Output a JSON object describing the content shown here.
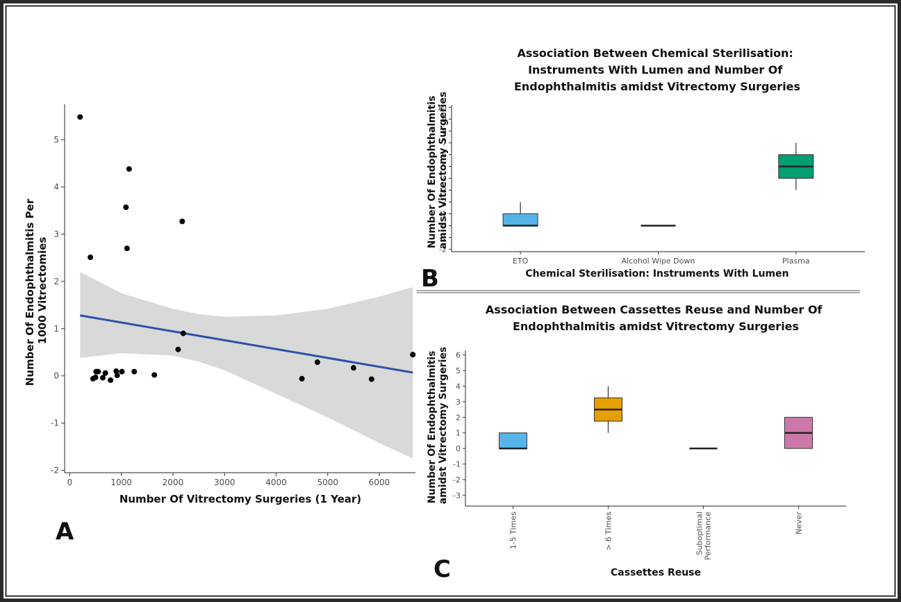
{
  "panels": {
    "A": "A",
    "B": "B",
    "C": "C"
  },
  "chart_data": [
    {
      "id": "A",
      "type": "scatter",
      "title": "",
      "xlabel": "Number Of Vitrectomy Surgeries (1 Year)",
      "ylabel": "Number Of Endophthalmitis Per 1000 Vitrectomies",
      "ylabel_lines": [
        "Number Of Endophthalmitis Per",
        "1000 Vitrectomies"
      ],
      "xlim": [
        -100,
        6700
      ],
      "ylim": [
        -2.05,
        5.75
      ],
      "xticks": [
        0,
        1000,
        2000,
        3000,
        4000,
        5000,
        6000
      ],
      "yticks": [
        -2,
        -1,
        0,
        1,
        2,
        3,
        4,
        5
      ],
      "points": [
        {
          "x": 200,
          "y": 5.48
        },
        {
          "x": 400,
          "y": 2.51
        },
        {
          "x": 450,
          "y": -0.06
        },
        {
          "x": 500,
          "y": -0.03
        },
        {
          "x": 510,
          "y": 0.09
        },
        {
          "x": 550,
          "y": 0.09
        },
        {
          "x": 640,
          "y": -0.04
        },
        {
          "x": 690,
          "y": 0.06
        },
        {
          "x": 790,
          "y": -0.09
        },
        {
          "x": 900,
          "y": 0.1
        },
        {
          "x": 920,
          "y": 0.01
        },
        {
          "x": 1010,
          "y": 0.09
        },
        {
          "x": 1090,
          "y": 3.57
        },
        {
          "x": 1110,
          "y": 2.7
        },
        {
          "x": 1150,
          "y": 4.38
        },
        {
          "x": 1250,
          "y": 0.09
        },
        {
          "x": 1640,
          "y": 0.02
        },
        {
          "x": 2100,
          "y": 0.56
        },
        {
          "x": 2180,
          "y": 3.27
        },
        {
          "x": 2200,
          "y": 0.9
        },
        {
          "x": 4500,
          "y": -0.06
        },
        {
          "x": 4800,
          "y": 0.29
        },
        {
          "x": 5500,
          "y": 0.17
        },
        {
          "x": 5850,
          "y": -0.07
        },
        {
          "x": 6650,
          "y": 0.45
        }
      ],
      "fit_line": {
        "x": [
          200,
          6650
        ],
        "y": [
          1.28,
          0.07
        ]
      },
      "confidence_band": {
        "x": [
          200,
          1000,
          2000,
          2500,
          3000,
          4000,
          5000,
          6000,
          6650
        ],
        "upper": [
          2.2,
          1.75,
          1.42,
          1.31,
          1.25,
          1.28,
          1.42,
          1.68,
          1.88
        ],
        "lower": [
          0.38,
          0.48,
          0.43,
          0.3,
          0.12,
          -0.38,
          -0.88,
          -1.42,
          -1.75
        ]
      },
      "colors": {
        "points": "#000000",
        "fit_line": "#2c4fa8",
        "band": "#d9d9d9"
      }
    },
    {
      "id": "B",
      "type": "box",
      "title": "Association Between Chemical Sterilisation: Instruments With Lumen and Number Of Endophthalmitis amidst Vitrectomy Surgeries",
      "title_lines": [
        "Association Between Chemical Sterilisation:",
        "Instruments With Lumen and Number Of",
        "Endophthalmitis amidst Vitrectomy Surgeries"
      ],
      "xlabel": "Chemical Sterilisation: Instruments With Lumen",
      "ylabel": "Number Of Endophthalmitis amidst Vitrectomy Surgeries",
      "ylabel_lines": [
        "Number Of Endophthalmitis",
        "amidst Vitrectomy Surgeries"
      ],
      "ylim": [
        -2.2,
        10.2
      ],
      "yticks": [
        -2,
        -1,
        0,
        1,
        2,
        3,
        4,
        5,
        6,
        7,
        8,
        9,
        10
      ],
      "categories": [
        "ETO",
        "Alcohol Wipe Down",
        "Plasma"
      ],
      "boxes": [
        {
          "category": "ETO",
          "min": 0,
          "q1": 0,
          "median": 0,
          "q3": 1,
          "max": 2,
          "color": "#56b4e9"
        },
        {
          "category": "Alcohol Wipe Down",
          "min": 0,
          "q1": 0,
          "median": 0,
          "q3": 0,
          "max": 0,
          "color": "#000000"
        },
        {
          "category": "Plasma",
          "min": 3,
          "q1": 4,
          "median": 5,
          "q3": 6,
          "max": 7,
          "color": "#009e73"
        }
      ]
    },
    {
      "id": "C",
      "type": "box",
      "title": "Association Between Cassettes Reuse and Number Of Endophthalmitis amidst Vitrectomy Surgeries",
      "title_lines": [
        "Association Between Cassettes Reuse and Number Of",
        "Endophthalmitis amidst Vitrectomy Surgeries"
      ],
      "xlabel": "Cassettes Reuse",
      "ylabel": "Number Of Endophthalmitis amidst Vitrectomy Surgeries",
      "ylabel_lines": [
        "Number Of Endophthalmitis",
        "amidst Vitrectomy Surgeries"
      ],
      "ylim": [
        -3.7,
        6.3
      ],
      "yticks": [
        -3,
        -2,
        -1,
        0,
        1,
        2,
        3,
        4,
        5,
        6
      ],
      "categories": [
        "1-5 Times",
        "> 6 Times",
        "Suboptimal Performance",
        "Never"
      ],
      "category_lines": [
        [
          "1-5 Times"
        ],
        [
          "> 6 Times"
        ],
        [
          "Suboptimal",
          "Performance"
        ],
        [
          "Never"
        ]
      ],
      "boxes": [
        {
          "category": "1-5 Times",
          "min": 0,
          "q1": 0,
          "median": 0,
          "q3": 1,
          "max": 1,
          "color": "#56b4e9"
        },
        {
          "category": "> 6 Times",
          "min": 1,
          "q1": 1.75,
          "median": 2.5,
          "q3": 3.25,
          "max": 4,
          "color": "#e69f00"
        },
        {
          "category": "Suboptimal Performance",
          "min": 0,
          "q1": 0,
          "median": 0,
          "q3": 0,
          "max": 0,
          "color": "#000000"
        },
        {
          "category": "Never",
          "min": 0,
          "q1": 0,
          "median": 1,
          "q3": 2,
          "max": 2,
          "color": "#cc79a7"
        }
      ]
    }
  ]
}
